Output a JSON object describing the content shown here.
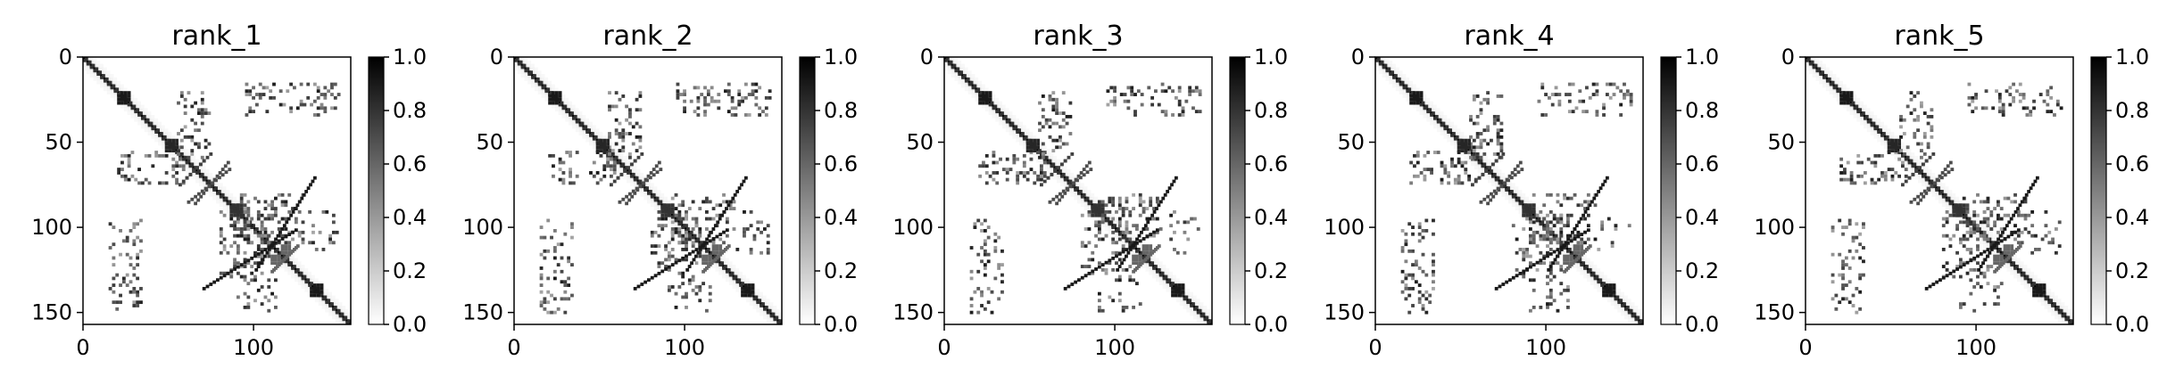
{
  "figure": {
    "style": {
      "background": "#ffffff",
      "colormap": "gray_r",
      "axis_color": "#000000"
    },
    "colorbar": {
      "ticks": [
        "0.0",
        "0.2",
        "0.4",
        "0.6",
        "0.8",
        "1.0"
      ],
      "range": [
        0,
        1
      ]
    }
  },
  "chart_data": [
    {
      "type": "heatmap",
      "title": "rank_1",
      "x_ticks": [
        "0",
        "100"
      ],
      "y_ticks": [
        "0",
        "50",
        "100",
        "150"
      ],
      "x_range": [
        0,
        157
      ],
      "y_range": [
        0,
        157
      ],
      "y_inverted": true,
      "value_range": [
        0,
        1
      ],
      "colorbar_ticks": [
        "0.0",
        "0.2",
        "0.4",
        "0.6",
        "0.8",
        "1.0"
      ],
      "features": {
        "diagonal": {
          "from": [
            0,
            0
          ],
          "to": [
            157,
            157
          ],
          "value": 1.0
        },
        "blocks": [
          [
            22,
            24,
            0.9
          ],
          [
            50,
            52,
            0.85
          ],
          [
            90,
            88,
            0.8
          ],
          [
            135,
            137,
            0.9
          ],
          [
            118,
            112,
            0.6
          ]
        ],
        "antidiagonal_segments": [
          {
            "from": [
              135,
              70
            ],
            "to": [
              100,
              125
            ],
            "value": 0.9
          },
          {
            "from": [
              85,
              65
            ],
            "to": [
              60,
              85
            ],
            "value": 0.7
          },
          {
            "from": [
              70,
              60
            ],
            "to": [
              55,
              75
            ],
            "value": 0.75
          },
          {
            "from": [
              125,
              110
            ],
            "to": [
              110,
              125
            ],
            "value": 0.6
          }
        ],
        "scattered_regions": [
          {
            "x": [
              20,
              60
            ],
            "y": [
              55,
              75
            ],
            "density": 0.25
          },
          {
            "x": [
              55,
              75
            ],
            "y": [
              20,
              60
            ],
            "density": 0.25
          },
          {
            "x": [
              95,
              150
            ],
            "y": [
              15,
              35
            ],
            "density": 0.2
          },
          {
            "x": [
              15,
              35
            ],
            "y": [
              95,
              150
            ],
            "density": 0.2
          },
          {
            "x": [
              80,
              110
            ],
            "y": [
              90,
              130
            ],
            "density": 0.25
          },
          {
            "x": [
              90,
              130
            ],
            "y": [
              80,
              110
            ],
            "density": 0.25
          },
          {
            "x": [
              130,
              150
            ],
            "y": [
              90,
              115
            ],
            "density": 0.15
          },
          {
            "x": [
              90,
              115
            ],
            "y": [
              130,
              150
            ],
            "density": 0.15
          }
        ]
      }
    },
    {
      "type": "heatmap",
      "title": "rank_2",
      "x_ticks": [
        "0",
        "100"
      ],
      "y_ticks": [
        "0",
        "50",
        "100",
        "150"
      ],
      "x_range": [
        0,
        157
      ],
      "y_range": [
        0,
        157
      ],
      "y_inverted": true,
      "value_range": [
        0,
        1
      ],
      "colorbar_ticks": [
        "0.0",
        "0.2",
        "0.4",
        "0.6",
        "0.8",
        "1.0"
      ],
      "features": {
        "diagonal": {
          "from": [
            0,
            0
          ],
          "to": [
            157,
            157
          ],
          "value": 1.0
        },
        "blocks": [
          [
            22,
            24,
            0.9
          ],
          [
            50,
            52,
            0.85
          ],
          [
            90,
            88,
            0.8
          ],
          [
            135,
            137,
            0.9
          ],
          [
            118,
            112,
            0.6
          ]
        ],
        "antidiagonal_segments": [
          {
            "from": [
              135,
              70
            ],
            "to": [
              100,
              125
            ],
            "value": 0.9
          },
          {
            "from": [
              85,
              65
            ],
            "to": [
              60,
              85
            ],
            "value": 0.7
          },
          {
            "from": [
              70,
              60
            ],
            "to": [
              55,
              75
            ],
            "value": 0.75
          },
          {
            "from": [
              125,
              110
            ],
            "to": [
              110,
              125
            ],
            "value": 0.6
          }
        ],
        "scattered_regions": [
          {
            "x": [
              20,
              60
            ],
            "y": [
              55,
              75
            ],
            "density": 0.25
          },
          {
            "x": [
              55,
              75
            ],
            "y": [
              20,
              60
            ],
            "density": 0.25
          },
          {
            "x": [
              95,
              150
            ],
            "y": [
              15,
              35
            ],
            "density": 0.2
          },
          {
            "x": [
              15,
              35
            ],
            "y": [
              95,
              150
            ],
            "density": 0.2
          },
          {
            "x": [
              80,
              110
            ],
            "y": [
              90,
              130
            ],
            "density": 0.25
          },
          {
            "x": [
              90,
              130
            ],
            "y": [
              80,
              110
            ],
            "density": 0.25
          },
          {
            "x": [
              130,
              150
            ],
            "y": [
              90,
              115
            ],
            "density": 0.15
          },
          {
            "x": [
              90,
              115
            ],
            "y": [
              130,
              150
            ],
            "density": 0.15
          }
        ]
      }
    },
    {
      "type": "heatmap",
      "title": "rank_3",
      "x_ticks": [
        "0",
        "100"
      ],
      "y_ticks": [
        "0",
        "50",
        "100",
        "150"
      ],
      "x_range": [
        0,
        157
      ],
      "y_range": [
        0,
        157
      ],
      "y_inverted": true,
      "value_range": [
        0,
        1
      ],
      "colorbar_ticks": [
        "0.0",
        "0.2",
        "0.4",
        "0.6",
        "0.8",
        "1.0"
      ],
      "features": {
        "diagonal": {
          "from": [
            0,
            0
          ],
          "to": [
            157,
            157
          ],
          "value": 1.0
        },
        "blocks": [
          [
            22,
            24,
            0.9
          ],
          [
            50,
            52,
            0.85
          ],
          [
            90,
            88,
            0.8
          ],
          [
            135,
            137,
            0.9
          ],
          [
            118,
            112,
            0.6
          ]
        ],
        "antidiagonal_segments": [
          {
            "from": [
              135,
              70
            ],
            "to": [
              100,
              125
            ],
            "value": 0.9
          },
          {
            "from": [
              85,
              65
            ],
            "to": [
              60,
              85
            ],
            "value": 0.7
          },
          {
            "from": [
              70,
              60
            ],
            "to": [
              55,
              75
            ],
            "value": 0.75
          },
          {
            "from": [
              125,
              110
            ],
            "to": [
              110,
              125
            ],
            "value": 0.6
          }
        ],
        "scattered_regions": [
          {
            "x": [
              20,
              60
            ],
            "y": [
              55,
              75
            ],
            "density": 0.25
          },
          {
            "x": [
              55,
              75
            ],
            "y": [
              20,
              60
            ],
            "density": 0.25
          },
          {
            "x": [
              95,
              150
            ],
            "y": [
              15,
              35
            ],
            "density": 0.2
          },
          {
            "x": [
              15,
              35
            ],
            "y": [
              95,
              150
            ],
            "density": 0.2
          },
          {
            "x": [
              80,
              110
            ],
            "y": [
              90,
              130
            ],
            "density": 0.25
          },
          {
            "x": [
              90,
              130
            ],
            "y": [
              80,
              110
            ],
            "density": 0.25
          },
          {
            "x": [
              130,
              150
            ],
            "y": [
              90,
              115
            ],
            "density": 0.15
          },
          {
            "x": [
              90,
              115
            ],
            "y": [
              130,
              150
            ],
            "density": 0.15
          }
        ]
      }
    },
    {
      "type": "heatmap",
      "title": "rank_4",
      "x_ticks": [
        "0",
        "100"
      ],
      "y_ticks": [
        "0",
        "50",
        "100",
        "150"
      ],
      "x_range": [
        0,
        157
      ],
      "y_range": [
        0,
        157
      ],
      "y_inverted": true,
      "value_range": [
        0,
        1
      ],
      "colorbar_ticks": [
        "0.0",
        "0.2",
        "0.4",
        "0.6",
        "0.8",
        "1.0"
      ],
      "features": {
        "diagonal": {
          "from": [
            0,
            0
          ],
          "to": [
            157,
            157
          ],
          "value": 1.0
        },
        "blocks": [
          [
            22,
            24,
            0.9
          ],
          [
            50,
            52,
            0.85
          ],
          [
            90,
            88,
            0.8
          ],
          [
            135,
            137,
            0.9
          ],
          [
            118,
            112,
            0.6
          ]
        ],
        "antidiagonal_segments": [
          {
            "from": [
              135,
              70
            ],
            "to": [
              100,
              125
            ],
            "value": 0.9
          },
          {
            "from": [
              85,
              65
            ],
            "to": [
              60,
              85
            ],
            "value": 0.7
          },
          {
            "from": [
              70,
              60
            ],
            "to": [
              55,
              75
            ],
            "value": 0.75
          },
          {
            "from": [
              125,
              110
            ],
            "to": [
              110,
              125
            ],
            "value": 0.6
          }
        ],
        "scattered_regions": [
          {
            "x": [
              20,
              60
            ],
            "y": [
              55,
              75
            ],
            "density": 0.25
          },
          {
            "x": [
              55,
              75
            ],
            "y": [
              20,
              60
            ],
            "density": 0.25
          },
          {
            "x": [
              95,
              150
            ],
            "y": [
              15,
              35
            ],
            "density": 0.2
          },
          {
            "x": [
              15,
              35
            ],
            "y": [
              95,
              150
            ],
            "density": 0.2
          },
          {
            "x": [
              80,
              110
            ],
            "y": [
              90,
              130
            ],
            "density": 0.25
          },
          {
            "x": [
              90,
              130
            ],
            "y": [
              80,
              110
            ],
            "density": 0.25
          },
          {
            "x": [
              130,
              150
            ],
            "y": [
              90,
              115
            ],
            "density": 0.15
          },
          {
            "x": [
              90,
              115
            ],
            "y": [
              130,
              150
            ],
            "density": 0.15
          }
        ]
      }
    },
    {
      "type": "heatmap",
      "title": "rank_5",
      "x_ticks": [
        "0",
        "100"
      ],
      "y_ticks": [
        "0",
        "50",
        "100",
        "150"
      ],
      "x_range": [
        0,
        157
      ],
      "y_range": [
        0,
        157
      ],
      "y_inverted": true,
      "value_range": [
        0,
        1
      ],
      "colorbar_ticks": [
        "0.0",
        "0.2",
        "0.4",
        "0.6",
        "0.8",
        "1.0"
      ],
      "features": {
        "diagonal": {
          "from": [
            0,
            0
          ],
          "to": [
            157,
            157
          ],
          "value": 1.0
        },
        "blocks": [
          [
            22,
            24,
            0.9
          ],
          [
            50,
            52,
            0.85
          ],
          [
            90,
            88,
            0.8
          ],
          [
            135,
            137,
            0.9
          ],
          [
            118,
            112,
            0.6
          ]
        ],
        "antidiagonal_segments": [
          {
            "from": [
              135,
              70
            ],
            "to": [
              100,
              125
            ],
            "value": 0.9
          },
          {
            "from": [
              85,
              65
            ],
            "to": [
              60,
              85
            ],
            "value": 0.7
          },
          {
            "from": [
              70,
              60
            ],
            "to": [
              55,
              75
            ],
            "value": 0.75
          },
          {
            "from": [
              125,
              110
            ],
            "to": [
              110,
              125
            ],
            "value": 0.6
          }
        ],
        "scattered_regions": [
          {
            "x": [
              20,
              60
            ],
            "y": [
              55,
              75
            ],
            "density": 0.25
          },
          {
            "x": [
              55,
              75
            ],
            "y": [
              20,
              60
            ],
            "density": 0.25
          },
          {
            "x": [
              95,
              150
            ],
            "y": [
              15,
              35
            ],
            "density": 0.2
          },
          {
            "x": [
              15,
              35
            ],
            "y": [
              95,
              150
            ],
            "density": 0.2
          },
          {
            "x": [
              80,
              110
            ],
            "y": [
              90,
              130
            ],
            "density": 0.25
          },
          {
            "x": [
              90,
              130
            ],
            "y": [
              80,
              110
            ],
            "density": 0.25
          },
          {
            "x": [
              130,
              150
            ],
            "y": [
              90,
              115
            ],
            "density": 0.15
          },
          {
            "x": [
              90,
              115
            ],
            "y": [
              130,
              150
            ],
            "density": 0.15
          }
        ]
      }
    }
  ]
}
